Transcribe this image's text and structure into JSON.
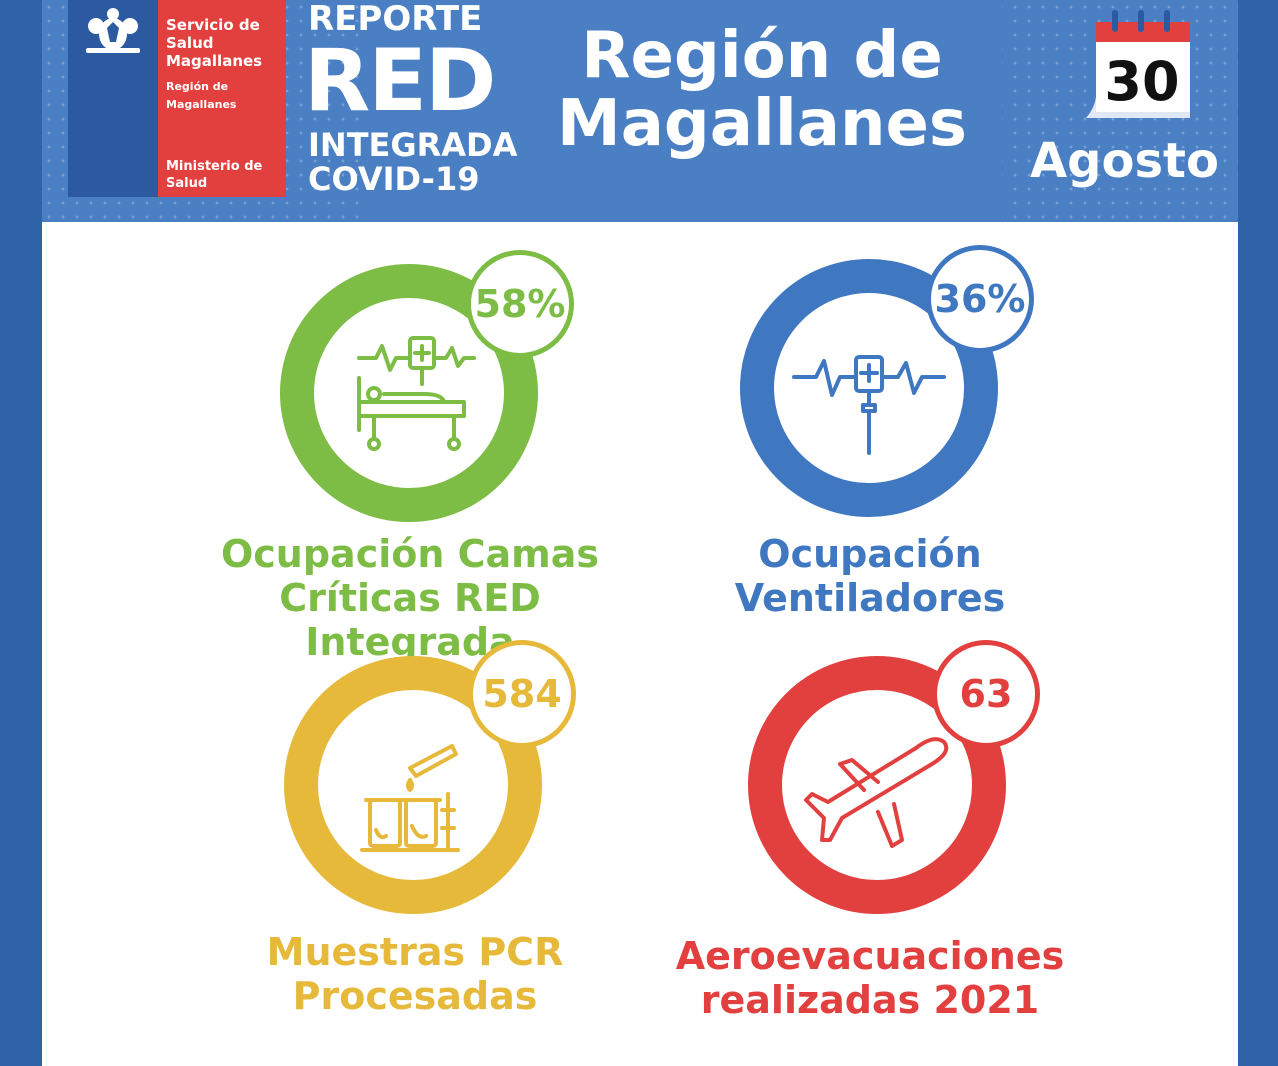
{
  "header": {
    "logo": {
      "line1": "Servicio de Salud Magallanes",
      "line2": "Región de Magallanes",
      "line3": "Ministerio de Salud"
    },
    "report": {
      "line1": "REPORTE",
      "line2": "RED",
      "line3": "INTEGRADA",
      "line4": "COVID-19"
    },
    "region_title": "Región de Magallanes",
    "date": {
      "day": "30",
      "month": "Agosto"
    }
  },
  "stats": [
    {
      "value": "58%",
      "label": "Ocupación Camas Críticas RED Integrada",
      "color": "#7dbd45",
      "icon": "hospital-bed-icon"
    },
    {
      "value": "36%",
      "label": "Ocupación Ventiladores",
      "color": "#3f78c1",
      "icon": "iv-drip-monitor-icon"
    },
    {
      "value": "584",
      "label": "Muestras PCR Procesadas",
      "color": "#e6b93a",
      "icon": "test-tubes-icon"
    },
    {
      "value": "63",
      "label": "Aeroevacuaciones realizadas 2021",
      "color": "#e2403f",
      "icon": "airplane-icon"
    }
  ]
}
